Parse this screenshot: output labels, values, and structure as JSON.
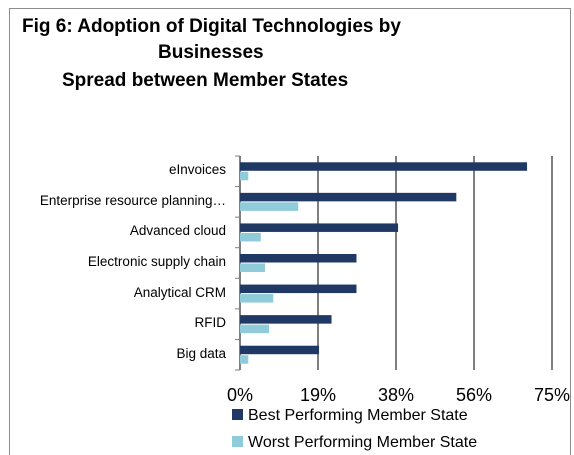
{
  "chart_data": {
    "type": "bar",
    "orientation": "horizontal",
    "title_lines": [
      "Fig 6: Adoption of Digital  Technologies by",
      "Businesses",
      "Spread between Member States"
    ],
    "categories": [
      "eInvoices",
      "Enterprise resource planning…",
      "Advanced cloud",
      "Electronic supply chain",
      "Analytical CRM",
      "RFID",
      "Big data"
    ],
    "series": [
      {
        "name": "Best Performing Member State",
        "color": "#1f3864",
        "values": [
          69,
          52,
          38,
          28,
          28,
          22,
          19
        ]
      },
      {
        "name": "Worst Performing  Member State",
        "color": "#8fcbd9",
        "values": [
          2,
          14,
          5,
          6,
          8,
          7,
          2
        ]
      }
    ],
    "x_ticks": [
      "0%",
      "19%",
      "38%",
      "56%",
      "75%"
    ],
    "xlim": [
      0,
      75
    ],
    "grid": "vertical",
    "legend_position": "bottom"
  }
}
